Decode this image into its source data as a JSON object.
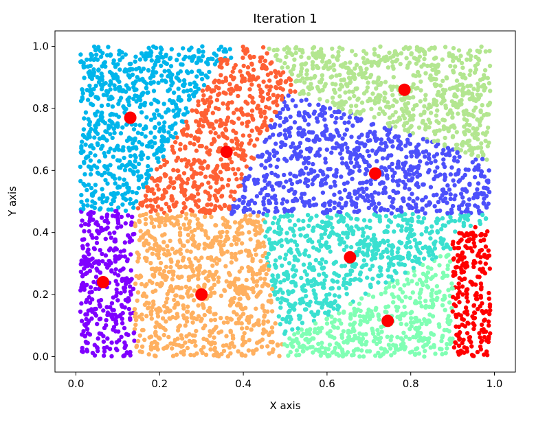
{
  "chart_data": {
    "type": "scatter",
    "title": "Iteration 1",
    "xlabel": "X axis",
    "ylabel": "Y axis",
    "xlim": [
      -0.05,
      1.05
    ],
    "ylim": [
      -0.05,
      1.05
    ],
    "x_ticks": [
      0.0,
      0.2,
      0.4,
      0.6,
      0.8,
      1.0
    ],
    "y_ticks": [
      0.0,
      0.2,
      0.4,
      0.6,
      0.8,
      1.0
    ],
    "x_tick_labels": [
      "0.0",
      "0.2",
      "0.4",
      "0.6",
      "0.8",
      "1.0"
    ],
    "y_tick_labels": [
      "0.0",
      "0.2",
      "0.4",
      "0.6",
      "0.8",
      "1.0"
    ],
    "grid": false,
    "cluster_colors": [
      "#7f00ff",
      "#ffb060",
      "#00b5eb",
      "#ff6034",
      "#4c50fb",
      "#b3e690",
      "#3ae0d0",
      "#80ffb4",
      "#ff0000"
    ],
    "centroid_color": "#ff0000",
    "centroids": [
      {
        "x": 0.065,
        "y": 0.24
      },
      {
        "x": 0.3,
        "y": 0.2
      },
      {
        "x": 0.13,
        "y": 0.77
      },
      {
        "x": 0.36,
        "y": 0.66
      },
      {
        "x": 0.715,
        "y": 0.59
      },
      {
        "x": 0.785,
        "y": 0.86
      },
      {
        "x": 0.655,
        "y": 0.32
      },
      {
        "x": 0.745,
        "y": 0.115
      }
    ]
  }
}
